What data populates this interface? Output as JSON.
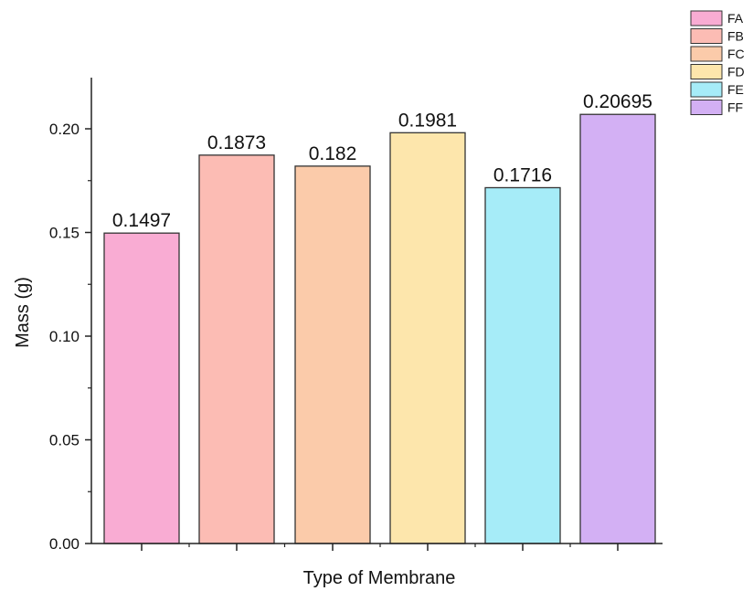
{
  "chart_data": {
    "type": "bar",
    "xlabel": "Type of Membrane",
    "ylabel": "Mass (g)",
    "ylim": [
      0,
      0.225
    ],
    "yticks": [
      "0.00",
      "0.05",
      "0.10",
      "0.15",
      "0.20"
    ],
    "ytick_values": [
      0,
      0.05,
      0.1,
      0.15,
      0.2
    ],
    "categories": [
      "FA",
      "FB",
      "FC",
      "FD",
      "FE",
      "FF"
    ],
    "values": [
      0.1497,
      0.1873,
      0.182,
      0.1981,
      0.1716,
      0.20695
    ],
    "data_labels": [
      "0.1497",
      "0.1873",
      "0.182",
      "0.1981",
      "0.1716",
      "0.20695"
    ],
    "colors": [
      "#f9acd3",
      "#fcbcb4",
      "#fbcbaa",
      "#fde6ac",
      "#a6ecf8",
      "#d3b0f4"
    ],
    "legend": {
      "placement": "top-right",
      "entries": [
        "FA",
        "FB",
        "FC",
        "FD",
        "FE",
        "FF"
      ]
    },
    "grid": false
  }
}
